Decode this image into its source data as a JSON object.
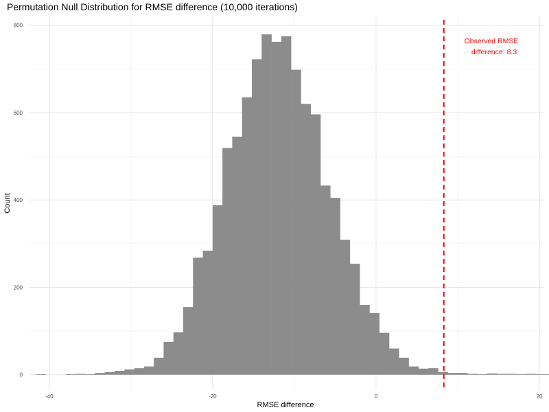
{
  "chart_data": {
    "type": "histogram",
    "title": "Permutation Null Distribution for RMSE difference (10,000 iterations)",
    "xlabel": "RMSE difference",
    "ylabel": "Count",
    "xlim": [
      -42.5,
      20.5
    ],
    "ylim": [
      -35,
      820
    ],
    "x_ticks": [
      -40,
      -20,
      0,
      20
    ],
    "y_ticks": [
      0,
      200,
      400,
      600,
      800
    ],
    "grid": true,
    "bar_color": "#8c8c8c",
    "bins": {
      "start": -41.6,
      "width": 1.2,
      "counts": [
        1,
        0,
        0,
        1,
        2,
        1,
        4,
        6,
        9,
        12,
        15,
        19,
        39,
        75,
        97,
        155,
        268,
        284,
        388,
        519,
        545,
        635,
        722,
        779,
        762,
        775,
        698,
        620,
        596,
        433,
        405,
        309,
        254,
        160,
        141,
        96,
        60,
        39,
        19,
        14,
        15,
        6,
        4,
        4,
        2,
        1,
        3,
        2,
        2,
        1,
        2,
        1,
        1
      ]
    },
    "observed": {
      "value": 8.3,
      "color": "#ff0000",
      "label_line1": "Observed RMSE",
      "label_line2": "difference: 8.3"
    }
  }
}
